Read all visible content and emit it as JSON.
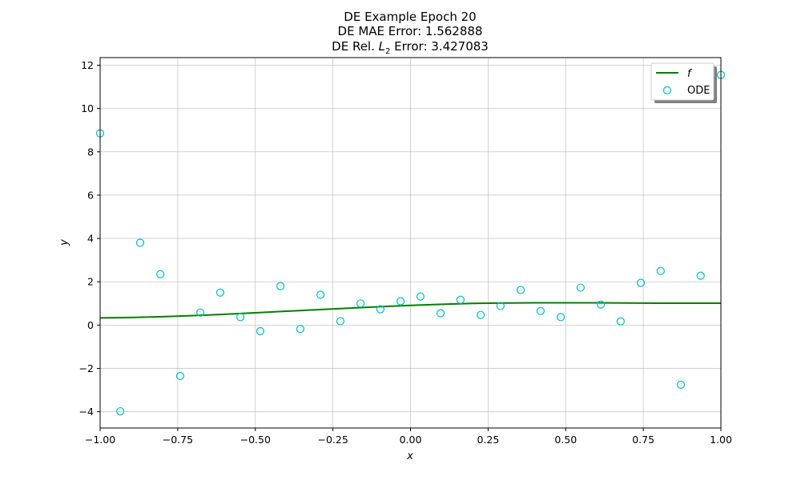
{
  "chart_data": {
    "type": "line",
    "title": [
      "DE Example Epoch 20",
      "DE MAE Error: 1.562888"
    ],
    "title_line3": {
      "prefix": "DE Rel. ",
      "math": "L",
      "sub": "2",
      "suffix": " Error: 3.427083"
    },
    "xlabel": "x",
    "ylabel": "y",
    "xlim": [
      -1.0,
      1.0
    ],
    "ylim": [
      -4.75,
      12.35
    ],
    "xticks": [
      -1.0,
      -0.75,
      -0.5,
      -0.25,
      0.0,
      0.25,
      0.5,
      0.75,
      1.0
    ],
    "xtick_labels": [
      "−1.00",
      "−0.75",
      "−0.50",
      "−0.25",
      "0.00",
      "0.25",
      "0.50",
      "0.75",
      "1.00"
    ],
    "yticks": [
      -4,
      -2,
      0,
      2,
      4,
      6,
      8,
      10,
      12
    ],
    "ytick_labels": [
      "−4",
      "−2",
      "0",
      "2",
      "4",
      "6",
      "8",
      "10",
      "12"
    ],
    "grid": true,
    "legend_position": "top-right",
    "series": [
      {
        "name": "f",
        "kind": "line",
        "color": "#008000",
        "x": [
          -1.0,
          -0.9,
          -0.8,
          -0.7,
          -0.6,
          -0.5,
          -0.4,
          -0.3,
          -0.2,
          -0.1,
          0.0,
          0.1,
          0.2,
          0.3,
          0.4,
          0.5,
          0.6,
          0.7,
          0.8,
          0.9,
          1.0
        ],
        "y": [
          0.33,
          0.35,
          0.39,
          0.44,
          0.5,
          0.57,
          0.64,
          0.71,
          0.78,
          0.85,
          0.91,
          0.96,
          1.0,
          1.02,
          1.03,
          1.03,
          1.03,
          1.02,
          1.01,
          1.01,
          1.01
        ]
      },
      {
        "name": "ODE",
        "kind": "scatter",
        "color": "#00BFBF",
        "x": [
          -1.0,
          -0.935,
          -0.871,
          -0.806,
          -0.742,
          -0.677,
          -0.613,
          -0.548,
          -0.484,
          -0.419,
          -0.355,
          -0.29,
          -0.226,
          -0.161,
          -0.097,
          -0.032,
          0.032,
          0.097,
          0.161,
          0.226,
          0.29,
          0.355,
          0.419,
          0.484,
          0.548,
          0.613,
          0.677,
          0.742,
          0.806,
          0.871,
          0.935,
          1.0
        ],
        "y": [
          8.85,
          -3.98,
          3.8,
          2.35,
          -2.35,
          0.58,
          1.5,
          0.37,
          -0.28,
          1.8,
          -0.18,
          1.4,
          0.18,
          1.0,
          0.73,
          1.1,
          1.32,
          0.55,
          1.17,
          0.47,
          0.88,
          1.62,
          0.65,
          0.37,
          1.73,
          0.95,
          0.17,
          1.95,
          2.5,
          -2.75,
          2.28,
          11.55
        ]
      }
    ]
  }
}
